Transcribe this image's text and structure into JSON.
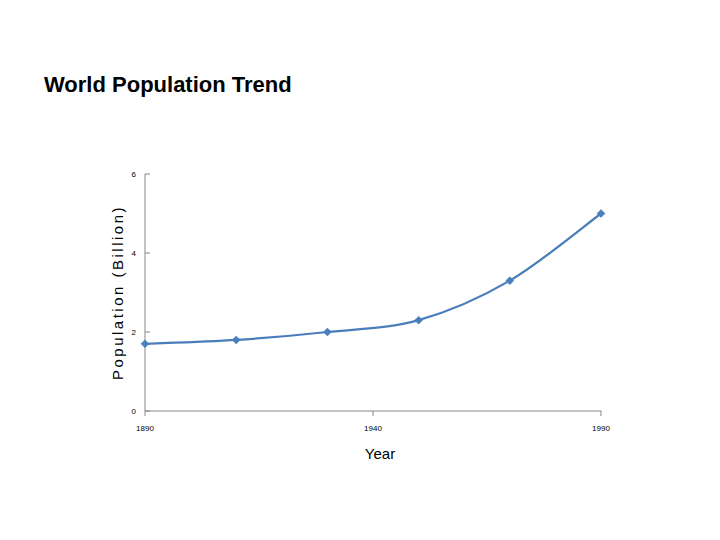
{
  "chart_data": {
    "type": "line",
    "title": "World Population Trend",
    "x_label": "Year",
    "y_label": "Population (Billion)",
    "x": [
      1890,
      1910,
      1930,
      1950,
      1970,
      1990
    ],
    "values": [
      1.7,
      1.8,
      2.0,
      2.3,
      3.3,
      5.0
    ],
    "color": "#4a7ebb",
    "marker": "diamond",
    "line_style": "solid",
    "xlim": [
      1890,
      1990
    ],
    "xticks": [
      1890,
      1940,
      1990
    ],
    "ylim": [
      0,
      6
    ],
    "yticks": [
      0,
      2,
      4,
      6
    ],
    "grid": false
  }
}
